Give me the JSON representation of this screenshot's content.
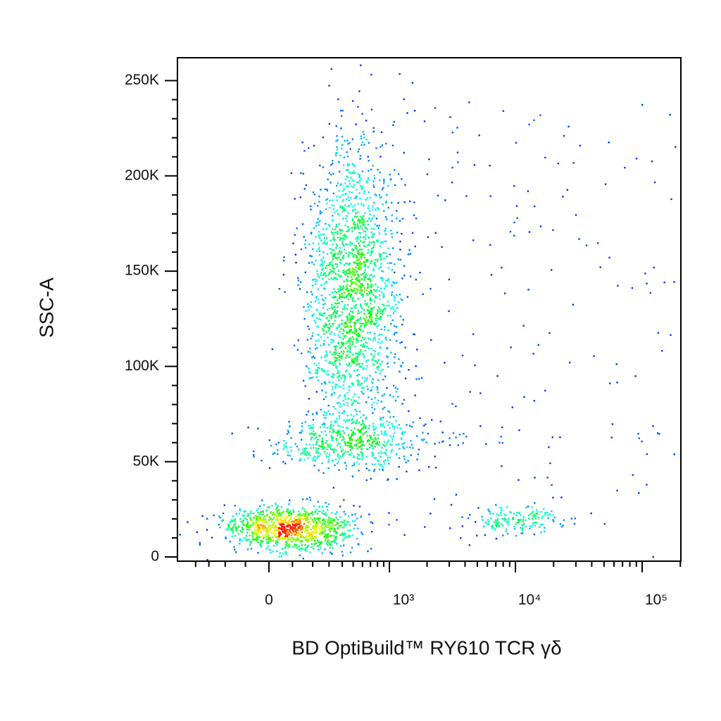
{
  "chart_data": {
    "type": "density-scatter",
    "x_label": "BD OptiBuild™ RY610 TCR γδ",
    "y_label": "SSC-A",
    "xscale": "biexponential",
    "xlim": [
      -577,
      202000
    ],
    "xticks": [
      0,
      {
        "value": 1000,
        "label": "10³"
      },
      {
        "value": 10000,
        "label": "10⁴"
      },
      {
        "value": 100000,
        "label": "10⁵"
      }
    ],
    "xminorticks": [
      -400,
      -300,
      -200,
      -100,
      100,
      200,
      300,
      400,
      500,
      600,
      700,
      800,
      900,
      2000,
      3000,
      4000,
      5000,
      6000,
      7000,
      8000,
      9000,
      20000,
      30000,
      40000,
      50000,
      60000,
      70000,
      80000,
      90000,
      200000
    ],
    "ylim": [
      -2200,
      262000
    ],
    "yticks": [
      0,
      {
        "value": 50000,
        "label": "50K"
      },
      {
        "value": 100000,
        "label": "100K"
      },
      {
        "value": 150000,
        "label": "150K"
      },
      {
        "value": 200000,
        "label": "200K"
      },
      {
        "value": 250000,
        "label": "250K"
      }
    ],
    "yminorticks": [
      10000,
      20000,
      30000,
      40000,
      60000,
      70000,
      80000,
      90000,
      110000,
      120000,
      130000,
      140000,
      160000,
      170000,
      180000,
      190000,
      210000,
      220000,
      230000,
      240000
    ],
    "populations": [
      {
        "x": 83,
        "y": 15000,
        "xrange": [
          -283,
          425
        ],
        "yrange": [
          5000,
          28000
        ],
        "count": 1000,
        "distribution": "normal"
      },
      {
        "x": 488,
        "y": 140000,
        "xrange": [
          148,
          1250
        ],
        "yrange": [
          80000,
          240000
        ],
        "count": 1900,
        "distribution": "normal"
      },
      {
        "x": 500,
        "y": 60000,
        "xrange": [
          53,
          2380
        ],
        "yrange": [
          45000,
          75000
        ],
        "count": 500,
        "distribution": "normal"
      },
      {
        "x": 9700,
        "y": 20000,
        "xrange": [
          5130,
          27000
        ],
        "yrange": [
          12000,
          27000
        ],
        "count": 160,
        "distribution": "normal"
      },
      {
        "x": 20000,
        "y": 120000,
        "xrange": [
          1000,
          202000
        ],
        "yrange": [
          0,
          240000
        ],
        "count": 180,
        "distribution": "uniform"
      }
    ]
  }
}
